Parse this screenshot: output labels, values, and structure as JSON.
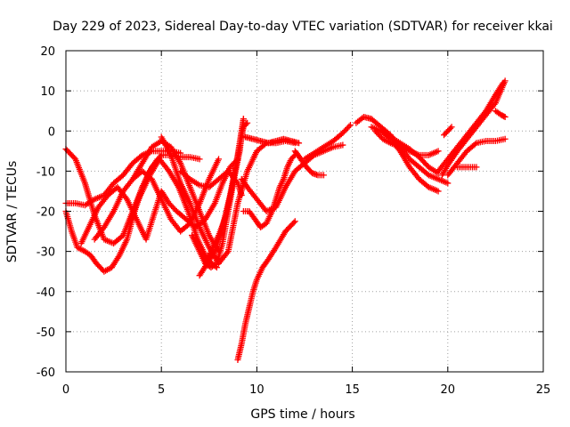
{
  "chart_data": {
    "type": "scatter",
    "title": "Day 229 of 2023, Sidereal Day-to-day VTEC variation (SDTVAR) for receiver kkai",
    "xlabel": "GPS time / hours",
    "ylabel": "SDTVAR / TECUs",
    "xlim": [
      0,
      25
    ],
    "ylim": [
      -60,
      20
    ],
    "xticks": [
      0,
      5,
      10,
      15,
      20,
      25
    ],
    "yticks": [
      -60,
      -50,
      -40,
      -30,
      -20,
      -10,
      0,
      10,
      20
    ],
    "grid": true,
    "marker": "+",
    "color": "#ff0000",
    "series": [
      {
        "x": [
          0,
          0.5,
          1,
          1.5,
          2,
          2.5,
          3,
          3.5,
          4,
          4.5,
          5,
          5.5,
          6,
          6.5,
          7
        ],
        "y": [
          -4.5,
          -7,
          -13,
          -21,
          -27,
          -28,
          -26,
          -20,
          -14,
          -9,
          -6,
          -6,
          -6.5,
          -6.5,
          -7
        ]
      },
      {
        "x": [
          0,
          0.3,
          0.6,
          1,
          1.3,
          1.6,
          2,
          2.4,
          2.8,
          3.2,
          3.6,
          4,
          4.4,
          4.8
        ],
        "y": [
          -20,
          -25,
          -29,
          -30,
          -31,
          -33,
          -35,
          -34,
          -31,
          -27,
          -20,
          -14,
          -10,
          -7
        ]
      },
      {
        "x": [
          0,
          0.5,
          1,
          1.5,
          2,
          2.5,
          3,
          3.5,
          4,
          4.5,
          5,
          5.5,
          6
        ],
        "y": [
          -18,
          -18,
          -18.5,
          -17,
          -16,
          -13,
          -11,
          -8,
          -6,
          -5,
          -5,
          -5,
          -5.5
        ]
      },
      {
        "x": [
          0.8,
          1.1,
          1.4,
          1.7,
          2.2,
          2.7,
          3.2,
          3.7,
          4.2,
          4.6,
          5,
          5.4,
          5.8,
          6.3,
          6.8,
          7.3,
          7.8,
          8.2,
          8.6,
          9
        ],
        "y": [
          -28,
          -25,
          -22,
          -19,
          -16,
          -14,
          -17,
          -22,
          -27,
          -21,
          -15,
          -18,
          -20,
          -22,
          -24,
          -22,
          -18,
          -13,
          -9,
          -7
        ]
      },
      {
        "x": [
          1.5,
          2,
          2.5,
          3,
          3.5,
          4,
          4.5,
          5,
          5.5,
          6,
          6.5,
          7,
          7.5,
          8
        ],
        "y": [
          -27,
          -24,
          -20,
          -15,
          -12,
          -10,
          -12,
          -17,
          -22,
          -25,
          -23,
          -18,
          -12,
          -7
        ]
      },
      {
        "x": [
          3.5,
          4,
          4.5,
          5,
          5.5,
          6,
          6.5,
          7,
          7.5,
          8
        ],
        "y": [
          -12,
          -8,
          -4,
          -2.5,
          -4,
          -8,
          -14,
          -20,
          -26,
          -30
        ]
      },
      {
        "x": [
          3.4,
          3.9,
          4.4,
          4.9,
          5.4,
          5.9,
          6.4,
          6.9,
          7.4,
          7.9
        ],
        "y": [
          -22,
          -16,
          -11,
          -7,
          -10,
          -14,
          -20,
          -27,
          -32,
          -34
        ]
      },
      {
        "x": [
          5,
          5.5,
          6,
          6.5,
          7,
          7.5,
          8,
          8.5,
          9,
          9.5,
          10,
          10.5,
          11,
          11.5,
          12
        ],
        "y": [
          -1.5,
          -6,
          -13,
          -18,
          -24,
          -29,
          -33,
          -30,
          -18,
          -10,
          -5,
          -3,
          -3,
          -2.5,
          -3
        ]
      },
      {
        "x": [
          6,
          6.5,
          7,
          7.5,
          8,
          8.5,
          9,
          9.2
        ],
        "y": [
          -10,
          -12,
          -13.5,
          -14,
          -12,
          -10,
          -13,
          -16
        ]
      },
      {
        "x": [
          6.6,
          7,
          7.3,
          7.6,
          7.9,
          8.2,
          8.5,
          8.8,
          9.1,
          9.3
        ],
        "y": [
          -26,
          -30,
          -33,
          -34,
          -33,
          -28,
          -20,
          -12,
          -5,
          3
        ]
      },
      {
        "x": [
          7,
          7.4,
          7.8,
          8.2,
          8.6,
          9,
          9.3
        ],
        "y": [
          -36,
          -33,
          -30,
          -24,
          -16,
          -6,
          3
        ]
      },
      {
        "x": [
          7.3,
          7.6,
          8,
          8.4,
          8.8,
          9.1,
          9.3,
          9.5
        ],
        "y": [
          -33,
          -30,
          -26,
          -21,
          -12,
          -4,
          1,
          2
        ]
      },
      {
        "x": [
          9,
          9.2,
          9.4,
          9.6,
          9.8,
          10,
          10.3,
          10.6,
          11,
          11.5,
          12
        ],
        "y": [
          -57,
          -53,
          -48,
          -44,
          -40,
          -37,
          -34,
          -32,
          -29,
          -25,
          -22.5
        ]
      },
      {
        "x": [
          9.2,
          9.5,
          10,
          10.5,
          11,
          11.5,
          12,
          12.5,
          13,
          13.5,
          14,
          14.5
        ],
        "y": [
          -12,
          -14,
          -17,
          -20,
          -19,
          -14,
          -10,
          -8,
          -6,
          -5,
          -4,
          -3.5
        ]
      },
      {
        "x": [
          9.3,
          9.6,
          9.9,
          10.2,
          10.5,
          10.8,
          11,
          11.2,
          11.4,
          11.6,
          11.8,
          12
        ],
        "y": [
          -20,
          -20,
          -22,
          -24,
          -23,
          -20,
          -17,
          -14,
          -12,
          -9,
          -7,
          -6
        ]
      },
      {
        "x": [
          9.4,
          9.8,
          10.2,
          10.6,
          11,
          11.4,
          11.8,
          12.2
        ],
        "y": [
          -1.5,
          -2,
          -2.5,
          -3,
          -2.5,
          -2,
          -2.5,
          -3
        ]
      },
      {
        "x": [
          12,
          12.3,
          12.6,
          12.9,
          13.2,
          13.5
        ],
        "y": [
          -5,
          -7,
          -9,
          -10.5,
          -11,
          -11
        ]
      },
      {
        "x": [
          12.5,
          13,
          13.5,
          14,
          14.5,
          14.9
        ],
        "y": [
          -7,
          -5.5,
          -4,
          -2.5,
          -0.5,
          1.5
        ]
      },
      {
        "x": [
          15.2,
          15.6,
          16
        ],
        "y": [
          2,
          3.5,
          3
        ]
      },
      {
        "x": [
          16,
          16.5,
          17,
          17.5,
          18,
          18.5,
          19,
          19.5,
          20
        ],
        "y": [
          3,
          1,
          -1,
          -4,
          -7,
          -9,
          -11,
          -12,
          -13
        ]
      },
      {
        "x": [
          16,
          16.5,
          17,
          17.5,
          18,
          18.5,
          19,
          19.5
        ],
        "y": [
          1,
          0,
          -2,
          -5,
          -9,
          -12,
          -14,
          -15
        ]
      },
      {
        "x": [
          16.2,
          16.6,
          17,
          17.5,
          18,
          18.5,
          19,
          19.5
        ],
        "y": [
          0,
          -2,
          -3,
          -4,
          -5,
          -6,
          -6,
          -5
        ]
      },
      {
        "x": [
          16.6,
          17,
          17.5,
          18,
          18.5,
          19,
          19.5
        ],
        "y": [
          0,
          -1.5,
          -3,
          -4.5,
          -6.5,
          -9,
          -10.5
        ]
      },
      {
        "x": [
          19.5,
          20,
          20.5,
          21,
          21.5,
          22,
          22.5,
          22.9
        ],
        "y": [
          -10,
          -7,
          -4,
          -1,
          2,
          5,
          9,
          12
        ]
      },
      {
        "x": [
          19.7,
          20,
          20.5,
          21,
          21.5,
          22,
          22.5,
          23
        ],
        "y": [
          -11,
          -8.5,
          -5,
          -2,
          1,
          4,
          7,
          12.5
        ]
      },
      {
        "x": [
          20,
          20.5,
          21,
          21.5,
          22,
          22.5,
          23
        ],
        "y": [
          -11,
          -8,
          -5,
          -3,
          -2.5,
          -2.5,
          -2
        ]
      },
      {
        "x": [
          19.8,
          20,
          20.2
        ],
        "y": [
          -1,
          0,
          1
        ]
      },
      {
        "x": [
          20.5,
          21,
          21.5
        ],
        "y": [
          -9,
          -9,
          -9
        ]
      },
      {
        "x": [
          22.5,
          22.8,
          23
        ],
        "y": [
          5,
          4,
          3.5
        ]
      }
    ]
  }
}
